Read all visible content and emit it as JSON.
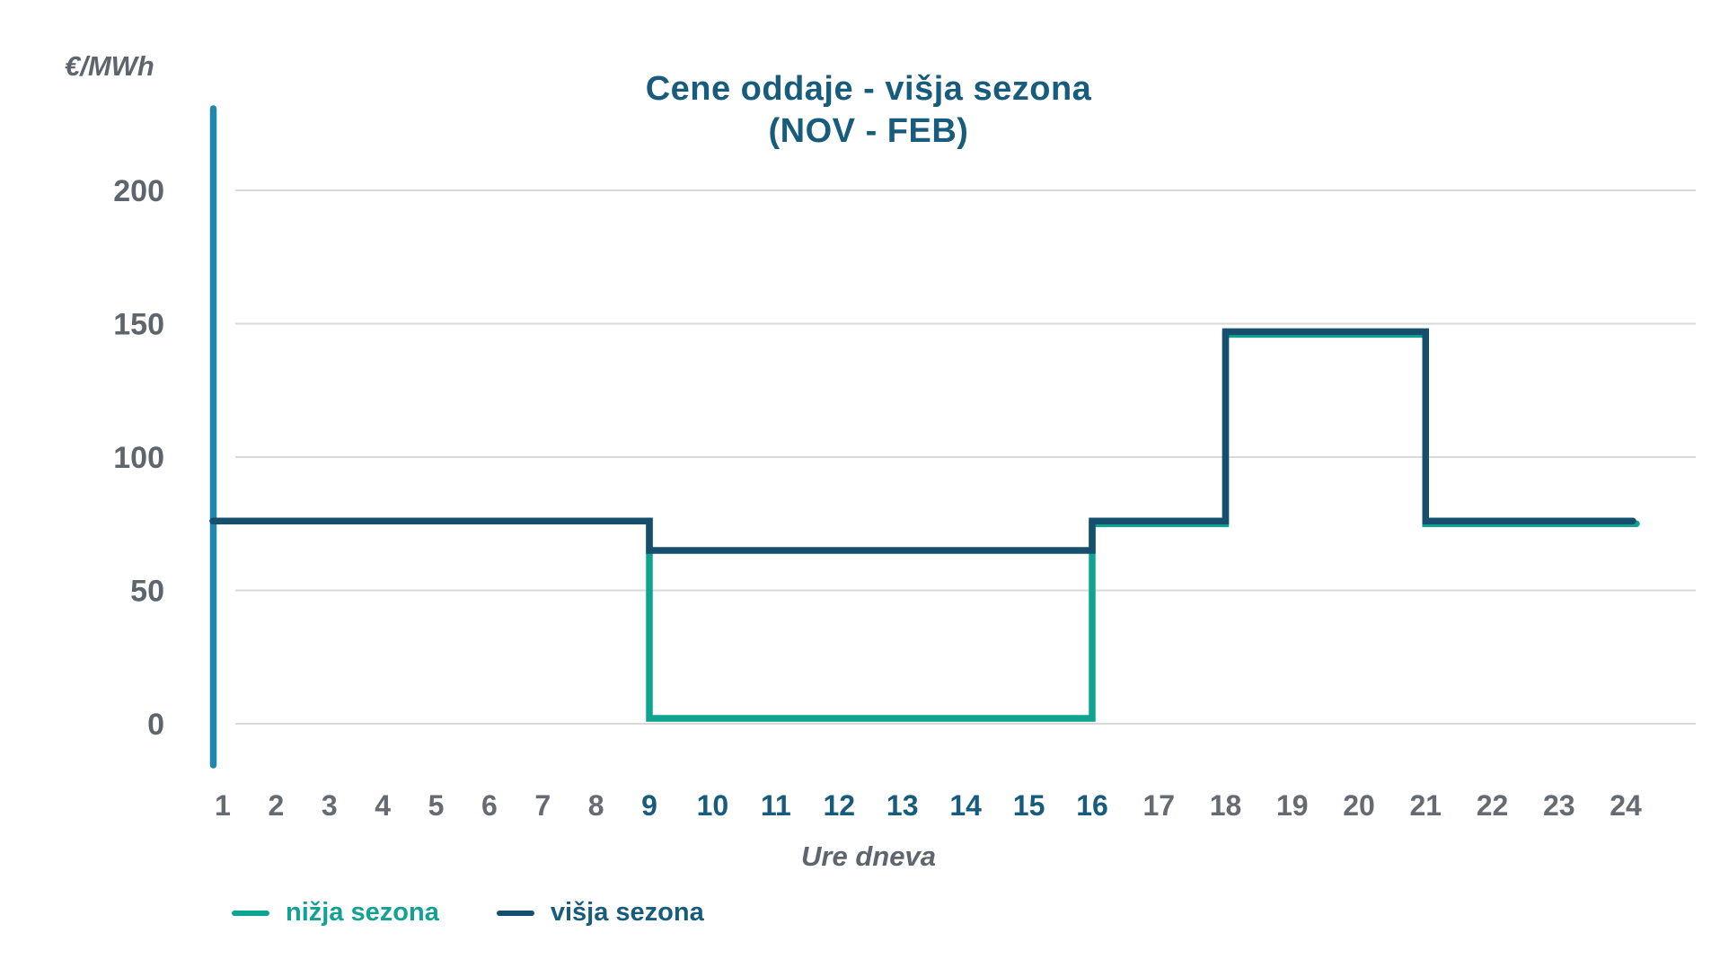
{
  "title": {
    "line1": "Cene oddaje - višja sezona",
    "line2": "(NOV - FEB)",
    "color": "#175B7D"
  },
  "y_axis_label": "€/MWh",
  "x_axis_label": "Ure dneva",
  "legend": [
    {
      "label": "nižja sezona",
      "text_color": "#12A192",
      "line_color": "#0FA392"
    },
    {
      "label": "višja sezona",
      "text_color": "#175B7D",
      "line_color": "#154F6D"
    }
  ],
  "colors": {
    "axis": "#2187AE",
    "axis_end": "#19597A",
    "gridline": "#D9D9D9",
    "tick_gray": "#666B71",
    "tick_highlight": "#175B7D",
    "y_tick": "#5F656C",
    "series_nizja": "#0FA392",
    "series_visja": "#154F6D"
  },
  "chart_data": {
    "type": "line",
    "subtype": "step",
    "title": "Cene oddaje - višja sezona (NOV - FEB)",
    "xlabel": "Ure dneva",
    "ylabel": "€/MWh",
    "x_ticks": [
      1,
      2,
      3,
      4,
      5,
      6,
      7,
      8,
      9,
      10,
      11,
      12,
      13,
      14,
      15,
      16,
      17,
      18,
      19,
      20,
      21,
      22,
      23,
      24
    ],
    "x_ticks_highlighted": [
      9,
      10,
      11,
      12,
      13,
      14,
      15,
      16
    ],
    "y_ticks": [
      0,
      50,
      100,
      150,
      200
    ],
    "ylim": [
      0,
      230
    ],
    "grid": "horizontal",
    "legend_position": "bottom-left",
    "series": [
      {
        "name": "nižja sezona",
        "color": "#0FA392",
        "segments": [
          {
            "from_hour": 1,
            "to_hour": 9,
            "value": 76
          },
          {
            "from_hour": 9,
            "to_hour": 16,
            "value": 2
          },
          {
            "from_hour": 16,
            "to_hour": 18,
            "value": 75
          },
          {
            "from_hour": 18,
            "to_hour": 21,
            "value": 146
          },
          {
            "from_hour": 21,
            "to_hour": 24,
            "value": 75
          }
        ],
        "values_by_hour": [
          76,
          76,
          76,
          76,
          76,
          76,
          76,
          76,
          2,
          2,
          2,
          2,
          2,
          2,
          2,
          75,
          75,
          146,
          146,
          146,
          75,
          75,
          75,
          75
        ]
      },
      {
        "name": "višja sezona",
        "color": "#154F6D",
        "segments": [
          {
            "from_hour": 1,
            "to_hour": 9,
            "value": 76
          },
          {
            "from_hour": 9,
            "to_hour": 16,
            "value": 65
          },
          {
            "from_hour": 16,
            "to_hour": 18,
            "value": 76
          },
          {
            "from_hour": 18,
            "to_hour": 21,
            "value": 147
          },
          {
            "from_hour": 21,
            "to_hour": 24,
            "value": 76
          }
        ],
        "values_by_hour": [
          76,
          76,
          76,
          76,
          76,
          76,
          76,
          76,
          65,
          65,
          65,
          65,
          65,
          65,
          65,
          76,
          76,
          147,
          147,
          147,
          76,
          76,
          76,
          76
        ]
      }
    ]
  }
}
